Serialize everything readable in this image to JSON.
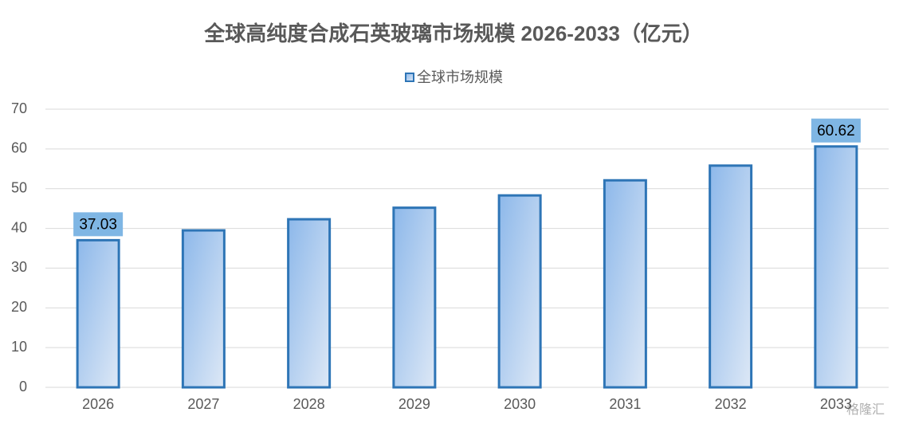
{
  "chart_data": {
    "type": "bar",
    "title": "全球高纯度合成石英玻璃市场规模 2026-2033（亿元）",
    "categories": [
      "2026",
      "2027",
      "2028",
      "2029",
      "2030",
      "2031",
      "2032",
      "2033"
    ],
    "series": [
      {
        "name": "全球市场规模",
        "color": "#2e75b6",
        "values": [
          37.03,
          39.5,
          42.3,
          45.2,
          48.3,
          52.1,
          55.8,
          60.62
        ]
      }
    ],
    "ylim": [
      0,
      70
    ],
    "yticks": [
      0,
      10,
      20,
      30,
      40,
      50,
      60,
      70
    ],
    "grid": true,
    "legend": "top",
    "watermark": "格隆汇"
  }
}
